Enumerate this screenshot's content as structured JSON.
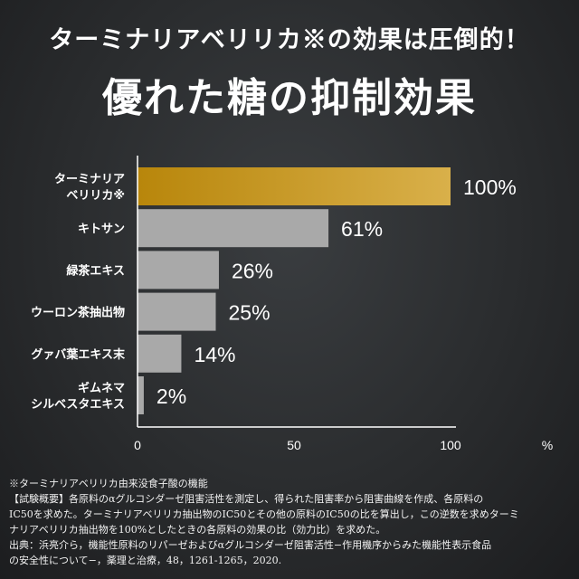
{
  "header": {
    "subtitle": "ターミナリアベリリカ※の効果は圧倒的！",
    "title": "優れた糖の抑制効果"
  },
  "chart_data": {
    "type": "bar",
    "orientation": "horizontal",
    "categories": [
      [
        "ターミナリア",
        "ベリリカ※"
      ],
      [
        "キトサン"
      ],
      [
        "緑茶エキス"
      ],
      [
        "ウーロン茶抽出物"
      ],
      [
        "グァバ葉エキス末"
      ],
      [
        "ギムネマ",
        "シルベスタエキス"
      ]
    ],
    "values": [
      100,
      61,
      26,
      25,
      14,
      2
    ],
    "data_labels": [
      "100%",
      "61%",
      "26%",
      "25%",
      "14%",
      "2%"
    ],
    "xlim": [
      0,
      100
    ],
    "xticks": [
      "0",
      "50",
      "100"
    ],
    "xunit": "%",
    "colors": {
      "highlight": "#c9962a",
      "default": "#a9a9a9"
    }
  },
  "notes": [
    "※ターミナリアベリリカ由来没食子酸の機能",
    "【試験概要】各原料のαグルコシダーゼ阻害活性を測定し、得られた阻害率から阻害曲線を作成、各原料の",
    "IC50を求めた。ターミナリアベリリカ抽出物のIC50とその他の原料のIC50の比を算出し，この逆数を求めターミ",
    "ナリアベリリカ抽出物を100%としたときの各原料の効果の比（効力比）を求めた。",
    "出典：浜亮介ら，機能性原料のリパーゼおよびαグルコシダーゼ阻害活性−作用機序からみた機能性表示食品",
    "の安全性について−，薬理と治療，48，1261-1265，2020."
  ]
}
